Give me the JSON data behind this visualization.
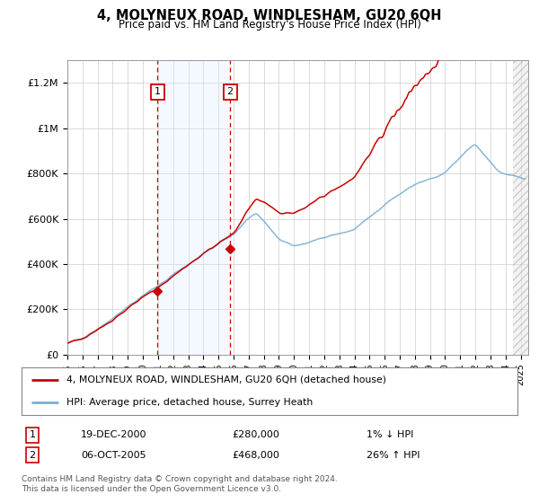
{
  "title": "4, MOLYNEUX ROAD, WINDLESHAM, GU20 6QH",
  "subtitle": "Price paid vs. HM Land Registry's House Price Index (HPI)",
  "legend_line1": "4, MOLYNEUX ROAD, WINDLESHAM, GU20 6QH (detached house)",
  "legend_line2": "HPI: Average price, detached house, Surrey Heath",
  "annotation1_label": "1",
  "annotation1_date": "19-DEC-2000",
  "annotation1_price": "£280,000",
  "annotation1_hpi": "1% ↓ HPI",
  "annotation1_year": 2000.96,
  "annotation1_value": 280000,
  "annotation2_label": "2",
  "annotation2_date": "06-OCT-2005",
  "annotation2_price": "£468,000",
  "annotation2_hpi": "26% ↑ HPI",
  "annotation2_year": 2005.77,
  "annotation2_value": 468000,
  "footer": "Contains HM Land Registry data © Crown copyright and database right 2024.\nThis data is licensed under the Open Government Licence v3.0.",
  "price_color": "#cc0000",
  "hpi_color": "#7bafd4",
  "annotation_box_color": "#cc0000",
  "shade_color": "#ddeeff",
  "background_color": "#ffffff",
  "grid_color": "#cccccc",
  "ylim": [
    0,
    1300000
  ],
  "yticks": [
    0,
    200000,
    400000,
    600000,
    800000,
    1000000,
    1200000
  ],
  "ytick_labels": [
    "£0",
    "£200K",
    "£400K",
    "£600K",
    "£800K",
    "£1M",
    "£1.2M"
  ],
  "xmin": 1995,
  "xmax": 2025.5,
  "hatch_start": 2024.5
}
